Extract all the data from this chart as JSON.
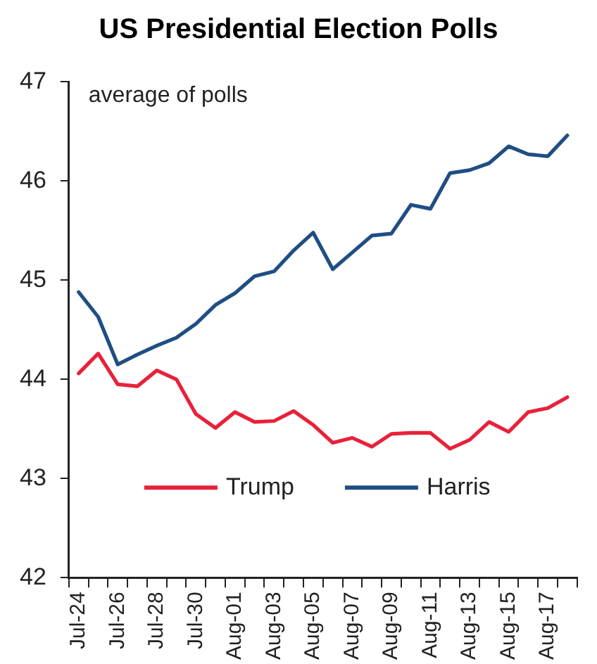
{
  "chart_data": {
    "type": "line",
    "title": "US Presidential Election Polls",
    "annotations": [
      "average of polls"
    ],
    "categories": [
      "Jul-24",
      null,
      "Jul-26",
      null,
      "Jul-28",
      null,
      "Jul-30",
      null,
      "Aug-01",
      null,
      "Aug-03",
      null,
      "Aug-05",
      null,
      "Aug-07",
      null,
      "Aug-09",
      null,
      "Aug-11",
      null,
      "Aug-13",
      null,
      "Aug-15",
      null,
      "Aug-17",
      null
    ],
    "series": [
      {
        "name": "Trump",
        "color": "#e8213a",
        "values": [
          44.06,
          44.26,
          43.95,
          43.93,
          44.09,
          44.0,
          43.65,
          43.51,
          43.67,
          43.57,
          43.58,
          43.68,
          43.54,
          43.36,
          43.41,
          43.32,
          43.45,
          43.46,
          43.46,
          43.3,
          43.39,
          43.57,
          43.47,
          43.67,
          43.71,
          43.82
        ]
      },
      {
        "name": "Harris",
        "color": "#1f4e84",
        "values": [
          44.88,
          44.63,
          44.15,
          44.25,
          44.34,
          44.42,
          44.56,
          44.75,
          44.87,
          45.04,
          45.09,
          45.3,
          45.48,
          45.11,
          45.28,
          45.45,
          45.47,
          45.76,
          45.72,
          46.08,
          46.11,
          46.18,
          46.35,
          46.27,
          46.25,
          46.46
        ]
      }
    ],
    "ylim": [
      42,
      47
    ],
    "yticks": [
      42,
      43,
      44,
      45,
      46,
      47
    ],
    "grid": false,
    "legend": "bottom",
    "marker": "none",
    "line_style": "solid"
  }
}
